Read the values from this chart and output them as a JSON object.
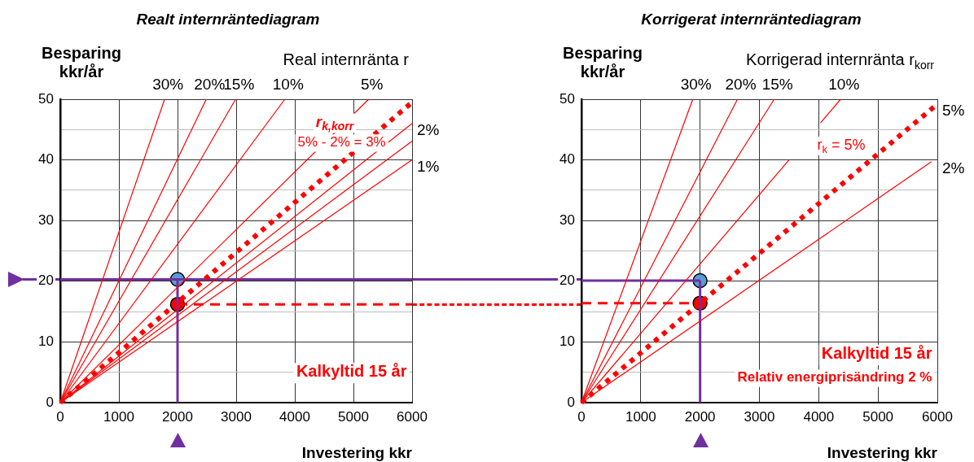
{
  "chart_data": [
    {
      "type": "line",
      "title": "Realt internräntediagram",
      "ylabel": "Besparing kkr/år",
      "xlabel": "Investering kkr",
      "legend_title": "Real internränta r",
      "xlim": [
        0,
        6000
      ],
      "xticks": [
        0,
        1000,
        2000,
        3000,
        4000,
        5000,
        6000
      ],
      "ylim": [
        0,
        50
      ],
      "yticks": [
        0,
        {
          "value": 5,
          "label": null
        },
        10,
        {
          "value": 15,
          "label": null
        },
        20,
        {
          "value": 25,
          "label": null
        },
        30,
        {
          "value": 35,
          "label": null
        },
        40,
        {
          "value": 45,
          "label": null
        },
        50
      ],
      "grid": true,
      "legend": false,
      "series": [
        {
          "name": "30%",
          "color": "#ff0000",
          "x": [
            0,
            1780
          ],
          "values": [
            0,
            50
          ]
        },
        {
          "name": "20%",
          "color": "#ff0000",
          "x": [
            0,
            2490
          ],
          "values": [
            0,
            50
          ]
        },
        {
          "name": "15%",
          "color": "#ff0000",
          "x": [
            0,
            2990
          ],
          "values": [
            0,
            50
          ]
        },
        {
          "name": "10%",
          "color": "#ff0000",
          "x": [
            0,
            3830
          ],
          "values": [
            0,
            50
          ]
        },
        {
          "name": "5%",
          "color": "#ff0000",
          "x": [
            0,
            5260
          ],
          "values": [
            0,
            50
          ]
        },
        {
          "color": "#ff0000",
          "line_style": "dotted",
          "x": [
            0,
            6000
          ],
          "values": [
            0,
            49.5
          ]
        },
        {
          "name": "2%",
          "color": "#ff0000",
          "x": [
            0,
            6000
          ],
          "values": [
            0,
            46.0
          ]
        },
        {
          "color": "#ff0000",
          "x": [
            0,
            6000
          ],
          "values": [
            0,
            43.1
          ]
        },
        {
          "name": "1%",
          "color": "#ff0000",
          "x": [
            0,
            6000
          ],
          "values": [
            0,
            40.0
          ]
        },
        {
          "color": "#7030a0",
          "line_style": "solid",
          "x": [
            0,
            6000
          ],
          "values": [
            20.3,
            20.3
          ]
        },
        {
          "color": "#7030a0",
          "line_style": "solid",
          "x": [
            2000,
            2000
          ],
          "values": [
            0,
            20.3
          ]
        },
        {
          "color": "#ff0000",
          "line_style": "dashed",
          "x": [
            2000,
            6000
          ],
          "values": [
            16.2,
            16.2
          ]
        },
        {
          "type": "scatter",
          "marker": "circle",
          "color": "#5b9bd5",
          "x": [
            2000
          ],
          "values": [
            20.3
          ]
        },
        {
          "type": "scatter",
          "marker": "circle",
          "color": "#ff0000",
          "x": [
            2000
          ],
          "values": [
            16.2
          ]
        }
      ],
      "annotations": [
        "r$_{k,korr}$",
        "5% - 2% = 3%",
        "Kalkyltid 15 år"
      ]
    },
    {
      "type": "line",
      "title": "Korrigerat internräntediagram",
      "ylabel": "Besparing kkr/år",
      "xlabel": "Investering kkr",
      "legend_title": "Korrigerad internränta r$_{korr}$",
      "xlim": [
        0,
        6000
      ],
      "xticks": [
        0,
        1000,
        2000,
        3000,
        4000,
        5000,
        6000
      ],
      "ylim": [
        0,
        50
      ],
      "yticks": [
        0,
        {
          "value": 5,
          "label": null
        },
        10,
        {
          "value": 15,
          "label": null
        },
        20,
        {
          "value": 25,
          "label": null
        },
        30,
        {
          "value": 35,
          "label": null
        },
        40,
        {
          "value": 45,
          "label": null
        },
        50
      ],
      "grid": true,
      "legend": false,
      "series": [
        {
          "name": "30%",
          "color": "#ff0000",
          "x": [
            0,
            1877
          ],
          "values": [
            0,
            50
          ]
        },
        {
          "name": "20%",
          "color": "#ff0000",
          "x": [
            0,
            2630
          ],
          "values": [
            0,
            50
          ]
        },
        {
          "name": "15%",
          "color": "#ff0000",
          "x": [
            0,
            3250
          ],
          "values": [
            0,
            50
          ]
        },
        {
          "name": "10%",
          "color": "#ff0000",
          "x": [
            0,
            3500,
            3770,
            4030,
            4370
          ],
          "values": [
            0,
            40.0,
            null,
            46.1,
            50
          ]
        },
        {
          "name": "5%",
          "color": "#ff0000",
          "line_style": "dotted",
          "x": [
            0,
            6000
          ],
          "values": [
            0,
            49.2
          ]
        },
        {
          "name": "2%",
          "color": "#ff0000",
          "x": [
            0,
            5900
          ],
          "values": [
            0,
            39.7
          ]
        },
        {
          "color": "#7030a0",
          "line_style": "solid",
          "x": [
            0,
            2000
          ],
          "values": [
            20.1,
            20.1
          ]
        },
        {
          "color": "#7030a0",
          "line_style": "solid",
          "x": [
            2000,
            2000
          ],
          "values": [
            0,
            20.1
          ]
        },
        {
          "color": "#ff0000",
          "line_style": "dashed",
          "x": [
            0,
            2000
          ],
          "values": [
            16.4,
            16.4
          ]
        },
        {
          "type": "scatter",
          "marker": "circle",
          "color": "#5b9bd5",
          "x": [
            2000
          ],
          "values": [
            20.1
          ]
        },
        {
          "type": "scatter",
          "marker": "circle",
          "color": "#ff0000",
          "x": [
            2000
          ],
          "values": [
            16.4
          ]
        }
      ],
      "annotations": [
        "r$_{k}$ = 5%",
        "Kalkyltid 15 år",
        "Relativ energiprisändring 2 %"
      ]
    }
  ]
}
